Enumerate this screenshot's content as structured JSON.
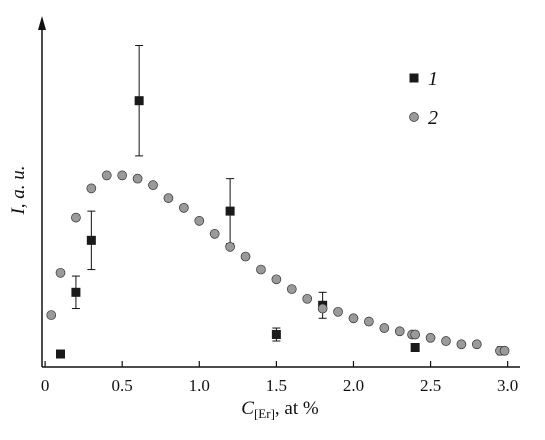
{
  "chart_data": {
    "type": "scatter",
    "xlabel": {
      "main": "C",
      "sub": "[Er]",
      "rest": ", at %"
    },
    "ylabel": "I, a. u.",
    "xlim": [
      -0.02,
      3.08
    ],
    "ylim": [
      0,
      1.05
    ],
    "x_ticks": [
      0,
      0.5,
      1.0,
      1.5,
      2.0,
      2.5,
      3.0
    ],
    "x_tick_labels": [
      "0",
      "0.5",
      "1.0",
      "1.5",
      "2.0",
      "2.5",
      "3.0"
    ],
    "grid": false,
    "legend_position": "top-right",
    "series": [
      {
        "name": "1",
        "marker": "square",
        "color": "#1a1a1a",
        "points": [
          {
            "x": 0.1,
            "y": 0.04,
            "err": 0
          },
          {
            "x": 0.2,
            "y": 0.23,
            "err": 0.05
          },
          {
            "x": 0.3,
            "y": 0.39,
            "err": 0.09
          },
          {
            "x": 0.61,
            "y": 0.82,
            "err": 0.17
          },
          {
            "x": 1.2,
            "y": 0.48,
            "err": 0.1
          },
          {
            "x": 1.5,
            "y": 0.1,
            "err": 0.02
          },
          {
            "x": 1.8,
            "y": 0.19,
            "err": 0.04
          },
          {
            "x": 2.4,
            "y": 0.06,
            "err": 0
          },
          {
            "x": 2.96,
            "y": 0.05,
            "err": 0
          }
        ]
      },
      {
        "name": "2",
        "marker": "circle",
        "color": "#9a9a9a",
        "points": [
          {
            "x": 0.04,
            "y": 0.16
          },
          {
            "x": 0.1,
            "y": 0.29
          },
          {
            "x": 0.2,
            "y": 0.46
          },
          {
            "x": 0.3,
            "y": 0.55
          },
          {
            "x": 0.4,
            "y": 0.59
          },
          {
            "x": 0.5,
            "y": 0.59
          },
          {
            "x": 0.6,
            "y": 0.58
          },
          {
            "x": 0.7,
            "y": 0.56
          },
          {
            "x": 0.8,
            "y": 0.52
          },
          {
            "x": 0.9,
            "y": 0.49
          },
          {
            "x": 1.0,
            "y": 0.45
          },
          {
            "x": 1.1,
            "y": 0.41
          },
          {
            "x": 1.2,
            "y": 0.37
          },
          {
            "x": 1.3,
            "y": 0.34
          },
          {
            "x": 1.4,
            "y": 0.3
          },
          {
            "x": 1.5,
            "y": 0.27
          },
          {
            "x": 1.6,
            "y": 0.24
          },
          {
            "x": 1.7,
            "y": 0.21
          },
          {
            "x": 1.8,
            "y": 0.18
          },
          {
            "x": 1.9,
            "y": 0.17
          },
          {
            "x": 2.0,
            "y": 0.15
          },
          {
            "x": 2.1,
            "y": 0.14
          },
          {
            "x": 2.2,
            "y": 0.12
          },
          {
            "x": 2.3,
            "y": 0.11
          },
          {
            "x": 2.38,
            "y": 0.1
          },
          {
            "x": 2.4,
            "y": 0.1
          },
          {
            "x": 2.5,
            "y": 0.09
          },
          {
            "x": 2.6,
            "y": 0.08
          },
          {
            "x": 2.7,
            "y": 0.07
          },
          {
            "x": 2.8,
            "y": 0.07
          },
          {
            "x": 2.95,
            "y": 0.05
          },
          {
            "x": 2.98,
            "y": 0.05
          }
        ]
      }
    ]
  }
}
